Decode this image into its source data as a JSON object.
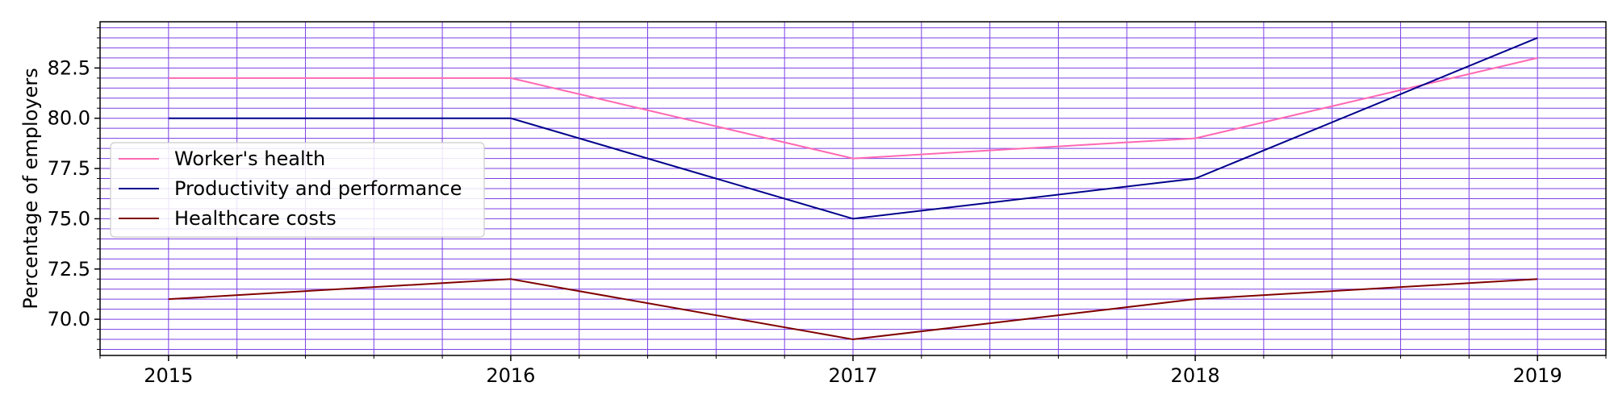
{
  "chart_data": {
    "type": "line",
    "title": "",
    "xlabel": "",
    "ylabel": "Percentage of employers",
    "x": [
      2015,
      2016,
      2017,
      2018,
      2019
    ],
    "x_tick_labels": [
      "2015",
      "2016",
      "2017",
      "2018",
      "2019"
    ],
    "y_tick_labels": [
      "70.0",
      "72.5",
      "75.0",
      "77.5",
      "80.0",
      "82.5"
    ],
    "y_ticks": [
      70.0,
      72.5,
      75.0,
      77.5,
      80.0,
      82.5
    ],
    "xlim": [
      2014.8,
      2019.2
    ],
    "ylim": [
      68.2,
      84.8
    ],
    "grid": true,
    "grid_color": "#7b3fe4",
    "legend_position": "center-left",
    "series": [
      {
        "name": "Worker's health",
        "color": "#ff69b4",
        "values": [
          82,
          82,
          78,
          79,
          83
        ]
      },
      {
        "name": "Productivity and performance",
        "color": "#00008b",
        "values": [
          80,
          80,
          75,
          77,
          84
        ]
      },
      {
        "name": "Healthcare costs",
        "color": "#800000",
        "values": [
          71,
          72,
          69,
          71,
          72
        ]
      }
    ]
  }
}
